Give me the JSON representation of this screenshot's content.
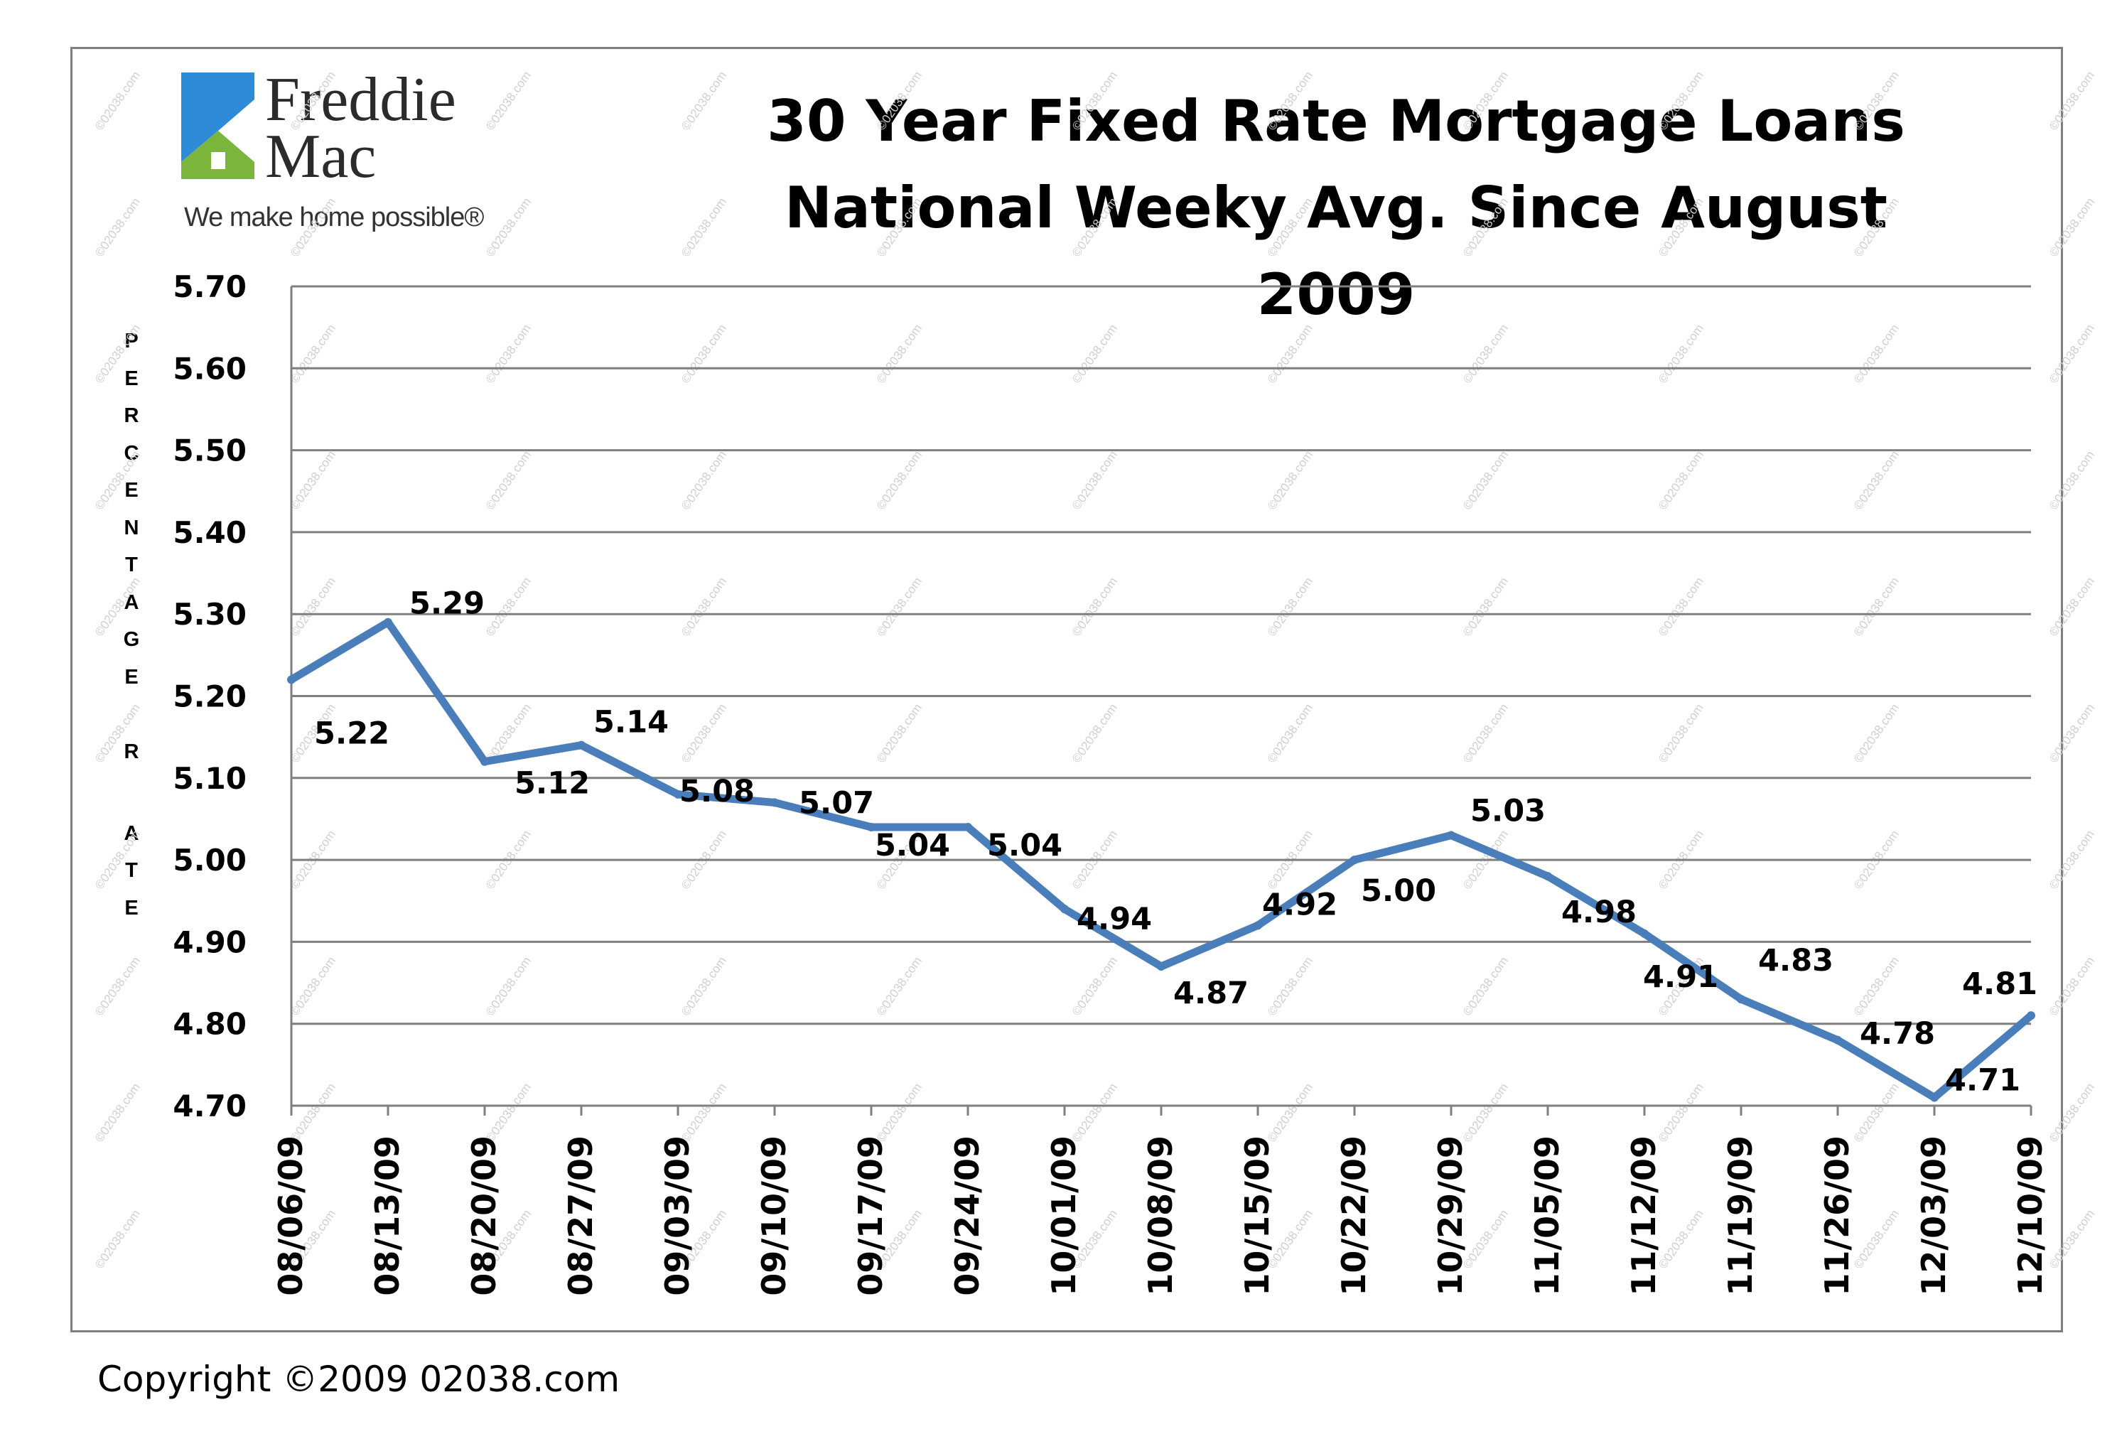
{
  "logo": {
    "brand_line1": "Freddie",
    "brand_line2": "Mac",
    "tagline": "We make home possible®",
    "colors": {
      "roof": "#2e8bd8",
      "house": "#7cb53c"
    }
  },
  "title": {
    "line1": "30 Year Fixed Rate Mortgage Loans",
    "line2": "National Weeky Avg. Since August 2009"
  },
  "copyright": "Copyright ©2009 02038.com",
  "watermark": "©02038.com",
  "chart_data": {
    "type": "line",
    "title": "30 Year Fixed Rate Mortgage Loans National Weeky Avg. Since August 2009",
    "xlabel": "",
    "ylabel": "PERCENTAGE RATE",
    "ylim": [
      4.7,
      5.7
    ],
    "y_ticks": [
      "5.70",
      "5.60",
      "5.50",
      "5.40",
      "5.30",
      "5.20",
      "5.10",
      "5.00",
      "4.90",
      "4.80",
      "4.70"
    ],
    "grid": true,
    "legend": "none",
    "line_color": "#4a7ebb",
    "categories": [
      "08/06/09",
      "08/13/09",
      "08/20/09",
      "08/27/09",
      "09/03/09",
      "09/10/09",
      "09/17/09",
      "09/24/09",
      "10/01/09",
      "10/08/09",
      "10/15/09",
      "10/22/09",
      "10/29/09",
      "11/05/09",
      "11/12/09",
      "11/19/09",
      "11/26/09",
      "12/03/09",
      "12/10/09"
    ],
    "values": [
      5.22,
      5.29,
      5.12,
      5.14,
      5.08,
      5.07,
      5.04,
      5.04,
      4.94,
      4.87,
      4.92,
      5.0,
      5.03,
      4.98,
      4.91,
      4.83,
      4.78,
      4.71,
      4.81
    ],
    "data_labels": [
      "5.22",
      "5.29",
      "5.12",
      "5.14",
      "5.08",
      "5.07",
      "5.04",
      "5.04",
      "4.94",
      "4.87",
      "4.92",
      "5.00",
      "5.03",
      "4.98",
      "4.91",
      "4.83",
      "4.78",
      "4.71",
      "4.81"
    ]
  }
}
